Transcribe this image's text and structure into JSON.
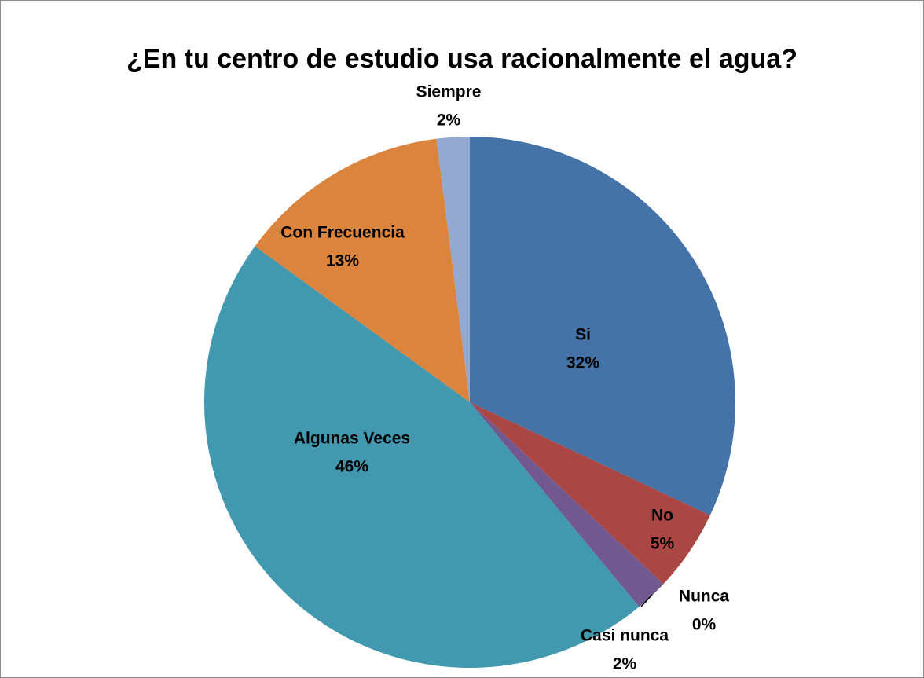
{
  "chart_data": {
    "type": "pie",
    "title": "¿En tu centro de estudio usa racionalmente el agua?",
    "categories": [
      "Si",
      "No",
      "Nunca",
      "Casi nunca",
      "Algunas Veces",
      "Con Frecuencia",
      "Siempre"
    ],
    "values": [
      32,
      5,
      0,
      2,
      46,
      13,
      2
    ],
    "value_labels": [
      "32%",
      "5%",
      "0%",
      "2%",
      "46%",
      "13%",
      "2%"
    ],
    "colors": [
      "#4572a7",
      "#aa4643",
      "#89a54e",
      "#71588f",
      "#4198af",
      "#db843d",
      "#93a9cf"
    ]
  }
}
